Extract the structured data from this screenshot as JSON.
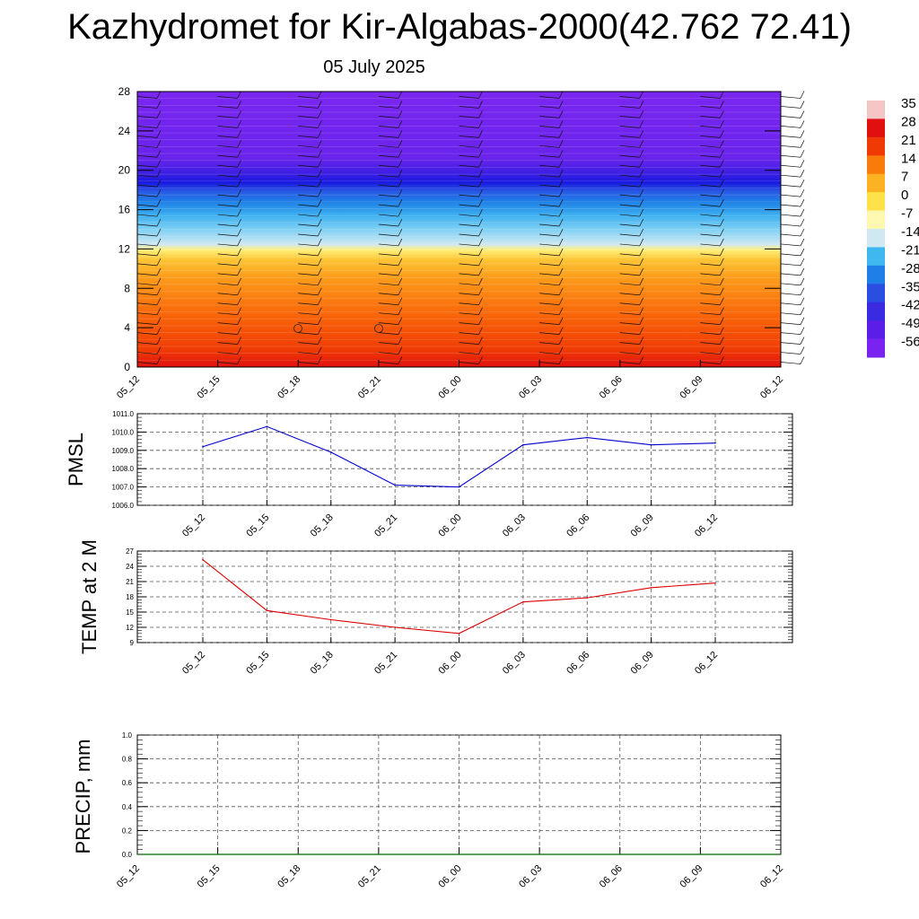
{
  "title": "Kazhydromet for Kir-Algabas-2000(42.762 72.41)",
  "subtitle": "05 July 2025",
  "chart_data": [
    {
      "type": "heatmap",
      "description_key": "temperature cross-section",
      "x_ticks": [
        "05_12",
        "05_15",
        "05_18",
        "05_21",
        "06_00",
        "06_03",
        "06_06",
        "06_09",
        "06_12"
      ],
      "y_ticks": [
        "0",
        "4",
        "8",
        "12",
        "16",
        "20",
        "24",
        "28"
      ],
      "ylim": [
        0,
        28
      ],
      "colorbar_labels": [
        "35",
        "28",
        "21",
        "14",
        "7",
        "0",
        "-7",
        "-14",
        "-21",
        "-28",
        "-35",
        "-42",
        "-49",
        "-56"
      ],
      "colorbar_colors": [
        "#f5c6c6",
        "#e01010",
        "#f03a05",
        "#fa7a0a",
        "#fcb221",
        "#ffe14a",
        "#fff8b0",
        "#cfe8f2",
        "#3fb8f0",
        "#1f7fe6",
        "#2a4fe0",
        "#3a2ae0",
        "#5a1ee8",
        "#7a22f0"
      ]
    },
    {
      "type": "line",
      "ylabel": "PMSL",
      "x": [
        "05_12",
        "05_15",
        "05_18",
        "05_21",
        "06_00",
        "06_03",
        "06_06",
        "06_09",
        "06_12"
      ],
      "values": [
        1009.2,
        1010.3,
        1008.9,
        1007.1,
        1007.0,
        1009.3,
        1009.7,
        1009.3,
        1009.4
      ],
      "ylim": [
        1006.0,
        1011.0
      ],
      "y_ticks": [
        "1006.0",
        "1007.0",
        "1008.0",
        "1009.0",
        "1010.0",
        "1011.0"
      ],
      "color": "#0000cc",
      "grid": true
    },
    {
      "type": "line",
      "ylabel": "TEMP at 2 M",
      "x": [
        "05_12",
        "05_15",
        "05_18",
        "05_21",
        "06_00",
        "06_03",
        "06_06",
        "06_09",
        "06_12"
      ],
      "values": [
        25.3,
        15.3,
        13.5,
        12.0,
        10.8,
        17.0,
        17.8,
        19.8,
        20.7
      ],
      "ylim": [
        9,
        27
      ],
      "y_ticks": [
        "9",
        "12",
        "15",
        "18",
        "21",
        "24",
        "27"
      ],
      "color": "#dd0000",
      "grid": true
    },
    {
      "type": "line",
      "ylabel": "PRECIP, mm",
      "x": [
        "05_12",
        "05_15",
        "05_18",
        "05_21",
        "06_00",
        "06_03",
        "06_06",
        "06_09",
        "06_12"
      ],
      "values": [
        0,
        0,
        0,
        0,
        0,
        0,
        0,
        0,
        0
      ],
      "ylim": [
        0,
        1
      ],
      "y_ticks": [
        "0.0",
        "0.2",
        "0.4",
        "0.6",
        "0.8",
        "1.0"
      ],
      "color": "#006600",
      "grid": true
    }
  ]
}
